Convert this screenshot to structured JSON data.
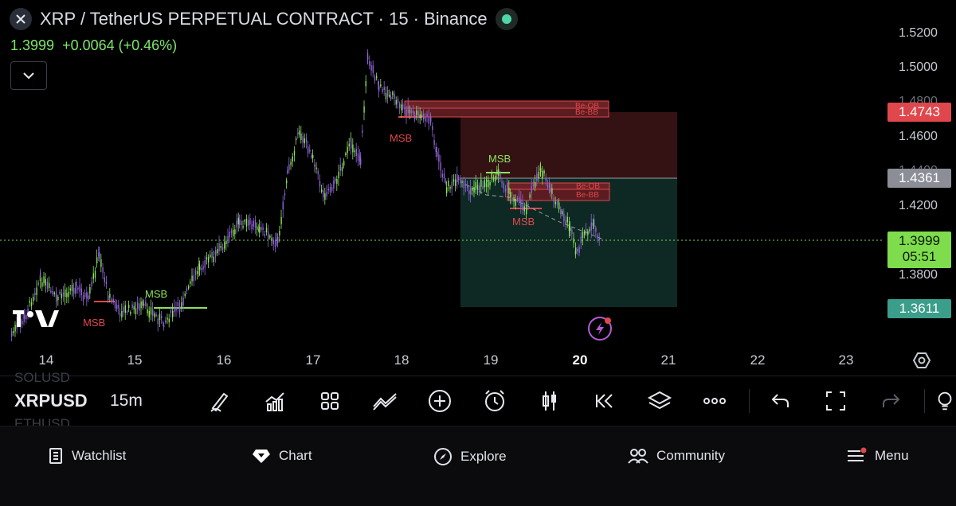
{
  "header": {
    "title": "XRP / TetherUS PERPETUAL CONTRACT · 15 · Binance",
    "last_price": "1.3999",
    "change": "+0.0064 (+0.46%)"
  },
  "price_axis": {
    "labels": [
      "1.5200",
      "1.5000",
      "1.4800",
      "1.4600",
      "1.4400",
      "1.4200",
      "1.3800"
    ],
    "tags": {
      "stop": "1.4743",
      "entry": "1.4361",
      "current": "1.3999",
      "countdown": "05:51",
      "target": "1.3611"
    }
  },
  "time_axis": {
    "labels": [
      "14",
      "15",
      "16",
      "17",
      "18",
      "19",
      "20",
      "21",
      "22",
      "23"
    ],
    "highlighted": "20"
  },
  "annotations": {
    "msb1": "MSB",
    "msb2": "MSB",
    "msb3": "MSB",
    "msb4": "MSB",
    "msb5": "MSB",
    "be_ob_top": "Be-OB",
    "be_bb_top": "Be-BB",
    "be_ob_mid": "Be-OB",
    "be_bb_mid": "Be-BB"
  },
  "colors": {
    "bull": "#8be35d",
    "bear": "#8f64d6",
    "stop_zone": "#3a1416",
    "target_zone": "#0f2e28",
    "red_tag": "#e0474c",
    "gray_tag": "#8b8e96",
    "green_tag": "#7fdc4c",
    "teal_tag": "#3a9e8a"
  },
  "toolbar": {
    "symbol": "XRPUSD",
    "interval": "15m",
    "ghost_top": "SOLUSD",
    "ghost_bottom": "ETHUSD",
    "icons": [
      "draw-icon",
      "indicators-icon",
      "templates-icon",
      "compare-icon",
      "add-icon",
      "alert-icon",
      "bar-type-icon",
      "replay-icon",
      "layers-icon",
      "more-icon",
      "undo-icon",
      "fullscreen-icon",
      "redo-icon",
      "idea-icon"
    ]
  },
  "bottom_nav": {
    "watchlist": "Watchlist",
    "chart": "Chart",
    "explore": "Explore",
    "community": "Community",
    "menu": "Menu"
  }
}
